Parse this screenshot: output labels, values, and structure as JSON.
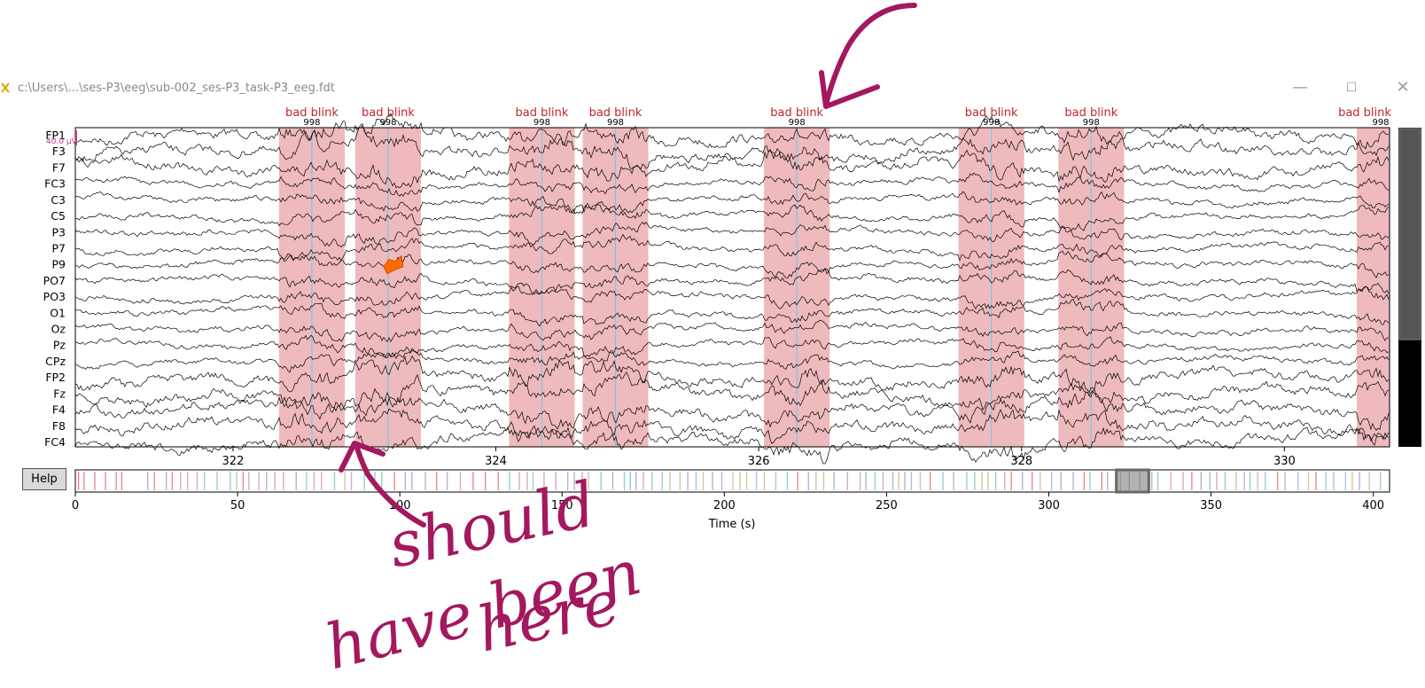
{
  "window": {
    "title": "c:\\Users\\...\\ses-P3\\eeg\\sub-002_ses-P3_task-P3_eeg.fdt",
    "minimize_glyph": "—",
    "maximize_glyph": "☐",
    "close_glyph": "✕"
  },
  "main_plot": {
    "channels": [
      "FP1",
      "F3",
      "F7",
      "FC3",
      "C3",
      "C5",
      "P3",
      "P7",
      "P9",
      "PO7",
      "PO3",
      "O1",
      "Oz",
      "Pz",
      "CPz",
      "FP2",
      "Fz",
      "F4",
      "F8",
      "FC4"
    ],
    "scale_label": "40.0 µV",
    "time_range": [
      320.8,
      330.8
    ],
    "x_ticks": [
      322,
      324,
      326,
      328,
      330
    ],
    "annotation_color": "#e58c91",
    "annotations": [
      {
        "label": "bad blink",
        "code": "998",
        "onset": 322.35,
        "offset": 322.85,
        "event": 322.6
      },
      {
        "label": "bad blink",
        "code": "998",
        "onset": 322.93,
        "offset": 323.43,
        "event": 323.18
      },
      {
        "label": "bad blink",
        "code": "998",
        "onset": 324.1,
        "offset": 324.6,
        "event": 324.35
      },
      {
        "label": "bad blink",
        "code": "998",
        "onset": 324.66,
        "offset": 325.16,
        "event": 324.91
      },
      {
        "label": "bad blink",
        "code": "998",
        "onset": 326.04,
        "offset": 326.54,
        "event": 326.29
      },
      {
        "label": "bad blink",
        "code": "998",
        "onset": 327.52,
        "offset": 328.02,
        "event": 327.77
      },
      {
        "label": "bad blink",
        "code": "998",
        "onset": 328.28,
        "offset": 328.78,
        "event": 328.53
      },
      {
        "label": "bad blink",
        "code": "998",
        "onset": 330.55,
        "offset": 330.8,
        "event": 330.8
      }
    ],
    "highlight_segment": {
      "time": 323.2,
      "channel": "P9",
      "color": "#ff6a00"
    }
  },
  "overview": {
    "x_ticks": [
      0,
      50,
      100,
      150,
      200,
      250,
      300,
      350,
      400
    ],
    "xlim": [
      0,
      405
    ],
    "xlabel": "Time (s)",
    "view_window": [
      320.8,
      330.8
    ]
  },
  "help_button": {
    "label": "Help"
  },
  "handwritten": {
    "line1": "should",
    "line2": "have been",
    "line3": "here",
    "color": "#a3185e"
  }
}
